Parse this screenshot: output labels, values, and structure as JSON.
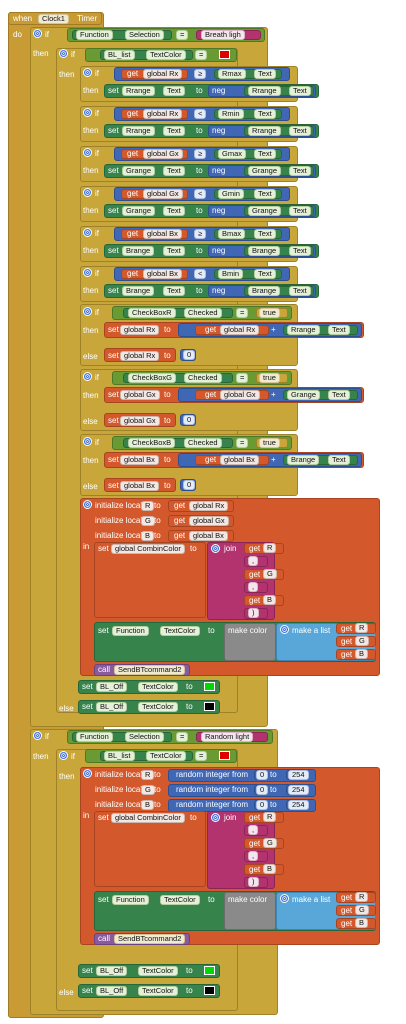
{
  "event": {
    "when": "when",
    "component": "Clock1",
    "event": "Timer",
    "do": "do"
  },
  "kw": {
    "if": "if",
    "then": "then",
    "else": "else",
    "set": "set",
    "get": "get",
    "to": "to",
    "neg": "neg",
    "in": "in",
    "call": "call",
    "join": "join",
    "make_color": "make color",
    "make_a_list": "make a list",
    "initialize_local": "initialize local",
    "random_integer_from": "random integer from",
    "eq": "=",
    "ge": "≥",
    "lt": "<",
    "plus": "+"
  },
  "components": {
    "function": "Function",
    "selection": "Selection",
    "bl_list": "BL_list",
    "textcolor": "TextColor",
    "text": "Text",
    "checked": "Checked",
    "bl_off": "BL_Off",
    "send": "SendBTcommand2",
    "checkboxr": "CheckBoxR",
    "checkboxg": "CheckBoxG",
    "checkboxb": "CheckBoxB",
    "rmax": "Rmax",
    "rmin": "Rmin",
    "gmax": "Gmax",
    "gmin": "Gmin",
    "bmax": "Bmax",
    "bmin": "Bmin",
    "rrange": "Rrange",
    "grange": "Grange",
    "brange": "Brange"
  },
  "vars": {
    "global_rx": "global Rx",
    "global_gx": "global Gx",
    "global_bx": "global Bx",
    "global_combincolor": "global CombinColor",
    "r": "R",
    "g": "G",
    "b": "B"
  },
  "literals": {
    "breath": "Breath ligh",
    "random": "Random light",
    "true": "true",
    "zero": "0",
    "max": "254",
    "comma": ",",
    "close": ")"
  },
  "colors": {
    "red_swatch": "#e00000",
    "green_swatch": "#00d800",
    "black_swatch": "#000000"
  }
}
